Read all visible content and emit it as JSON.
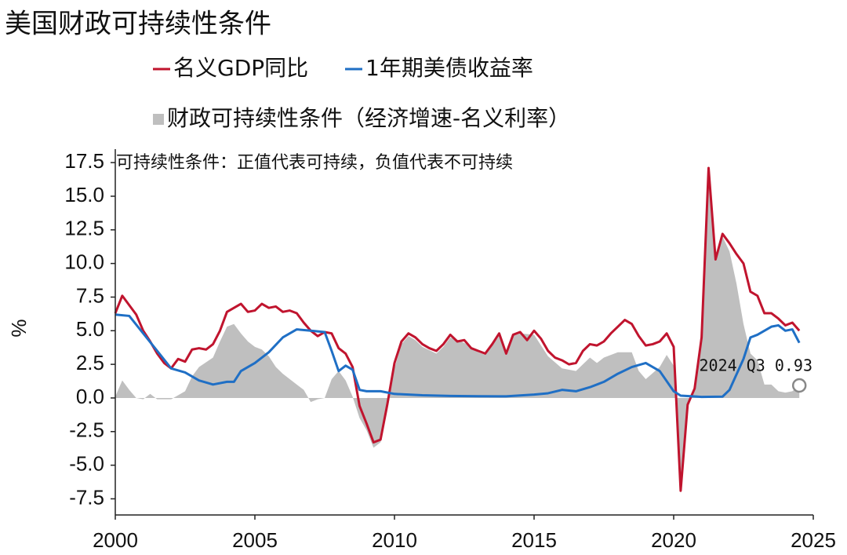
{
  "chart_data": {
    "type": "line",
    "title": "美国财政可持续性条件",
    "y_label": "%",
    "note": "可持续性条件：正值代表可持续，负值代表不可持续",
    "annotation": "2024 Q3 0.93",
    "xlim": [
      2000,
      2025
    ],
    "xticks": [
      2000,
      2005,
      2010,
      2015,
      2020,
      2025
    ],
    "ylim": [
      -8.7,
      18.5
    ],
    "yticks": [
      17.5,
      {
        "value": 15,
        "label": "15.0"
      },
      {
        "value": 12.5,
        "label": "12.5"
      },
      {
        "value": 10,
        "label": "10.0"
      },
      7.5,
      {
        "value": 5,
        "label": "5.0"
      },
      2.5,
      {
        "value": 0,
        "label": "0.0"
      },
      -2.5,
      {
        "value": -5,
        "label": "-5.0"
      },
      -7.5
    ],
    "grid": false,
    "series": [
      {
        "name": "财政可持续性条件（经济增速-名义利率）",
        "kind": "area",
        "color": "#bfbfbf",
        "x": [
          2000.0,
          2000.25,
          2000.5,
          2000.75,
          2001.0,
          2001.25,
          2001.5,
          2002.0,
          2002.5,
          2002.75,
          2003.0,
          2003.5,
          2003.75,
          2004.0,
          2004.25,
          2004.5,
          2004.75,
          2005.0,
          2005.25,
          2005.5,
          2005.75,
          2006.0,
          2006.5,
          2006.75,
          2007.0,
          2007.25,
          2007.5,
          2007.75,
          2008.0,
          2008.25,
          2008.5,
          2008.75,
          2009.0,
          2009.25,
          2009.5,
          2009.75,
          2010.0,
          2010.25,
          2010.5,
          2010.75,
          2011.0,
          2011.5,
          2011.75,
          2012.0,
          2012.5,
          2013.0,
          2013.25,
          2013.75,
          2014.0,
          2014.25,
          2014.5,
          2015.0,
          2015.5,
          2016.0,
          2016.5,
          2017.0,
          2017.25,
          2017.5,
          2018.0,
          2018.5,
          2018.75,
          2019.0,
          2019.5,
          2019.75,
          2020.0,
          2020.25,
          2020.5,
          2020.75,
          2021.0,
          2021.25,
          2021.5,
          2021.75,
          2022.0,
          2022.25,
          2022.5,
          2022.75,
          2023.0,
          2023.25,
          2023.5,
          2023.75,
          2024.0,
          2024.25,
          2024.5
        ],
        "values": [
          0.1,
          1.3,
          0.6,
          0.0,
          -0.1,
          0.3,
          -0.1,
          -0.1,
          0.5,
          1.6,
          2.3,
          3.0,
          4.2,
          5.3,
          5.5,
          4.8,
          4.2,
          3.8,
          3.6,
          3.1,
          2.3,
          1.8,
          1.0,
          0.6,
          -0.3,
          -0.1,
          0.0,
          1.4,
          2.0,
          1.3,
          0.1,
          -1.5,
          -2.4,
          -3.7,
          -3.3,
          -0.9,
          2.2,
          4.0,
          4.6,
          4.3,
          3.8,
          3.3,
          3.8,
          4.5,
          4.1,
          3.4,
          3.2,
          4.6,
          3.2,
          4.6,
          4.8,
          4.7,
          3.1,
          2.2,
          2.0,
          3.0,
          2.6,
          3.0,
          3.4,
          3.4,
          2.0,
          1.4,
          2.3,
          3.2,
          2.4,
          -7.0,
          -0.7,
          0.6,
          4.4,
          16.9,
          10.2,
          12.0,
          10.9,
          8.5,
          5.5,
          3.3,
          2.8,
          1.0,
          1.0,
          0.5,
          0.4,
          0.5,
          0.93
        ]
      },
      {
        "name": "名义GDP同比",
        "kind": "line",
        "color": "#c0142e",
        "x": [
          2000.0,
          2000.25,
          2000.5,
          2000.75,
          2001.0,
          2001.25,
          2001.5,
          2001.75,
          2002.0,
          2002.25,
          2002.5,
          2002.75,
          2003.0,
          2003.25,
          2003.5,
          2003.75,
          2004.0,
          2004.25,
          2004.5,
          2004.75,
          2005.0,
          2005.25,
          2005.5,
          2005.75,
          2006.0,
          2006.25,
          2006.5,
          2006.75,
          2007.0,
          2007.25,
          2007.5,
          2007.75,
          2008.0,
          2008.25,
          2008.5,
          2008.75,
          2009.0,
          2009.25,
          2009.5,
          2009.75,
          2010.0,
          2010.25,
          2010.5,
          2010.75,
          2011.0,
          2011.25,
          2011.5,
          2011.75,
          2012.0,
          2012.25,
          2012.5,
          2012.75,
          2013.0,
          2013.25,
          2013.5,
          2013.75,
          2014.0,
          2014.25,
          2014.5,
          2014.75,
          2015.0,
          2015.25,
          2015.5,
          2015.75,
          2016.0,
          2016.25,
          2016.5,
          2016.75,
          2017.0,
          2017.25,
          2017.5,
          2017.75,
          2018.0,
          2018.25,
          2018.5,
          2018.75,
          2019.0,
          2019.25,
          2019.5,
          2019.75,
          2020.0,
          2020.25,
          2020.5,
          2020.75,
          2021.0,
          2021.25,
          2021.5,
          2021.75,
          2022.0,
          2022.25,
          2022.5,
          2022.75,
          2023.0,
          2023.25,
          2023.5,
          2023.75,
          2024.0,
          2024.25,
          2024.5
        ],
        "values": [
          6.3,
          7.6,
          6.9,
          6.2,
          5.0,
          4.2,
          3.3,
          2.6,
          2.2,
          2.9,
          2.7,
          3.6,
          3.7,
          3.6,
          4.0,
          5.0,
          6.4,
          6.7,
          7.0,
          6.4,
          6.5,
          7.0,
          6.7,
          6.8,
          6.4,
          6.5,
          6.3,
          5.6,
          5.0,
          4.6,
          4.9,
          4.8,
          3.7,
          3.3,
          2.3,
          -0.6,
          -1.9,
          -3.3,
          -3.1,
          -0.4,
          2.6,
          4.2,
          4.8,
          4.5,
          4.0,
          3.7,
          3.5,
          4.0,
          4.7,
          4.2,
          4.3,
          3.7,
          3.5,
          3.3,
          4.0,
          4.8,
          3.3,
          4.7,
          4.9,
          4.3,
          5.0,
          4.4,
          3.5,
          3.0,
          2.8,
          2.5,
          2.6,
          3.5,
          4.0,
          3.9,
          4.2,
          4.8,
          5.3,
          5.8,
          5.5,
          4.6,
          3.9,
          4.0,
          4.2,
          4.8,
          3.8,
          -6.9,
          -0.5,
          0.7,
          4.5,
          17.1,
          10.3,
          12.2,
          11.5,
          10.7,
          10.0,
          7.9,
          7.6,
          6.3,
          6.3,
          5.9,
          5.4,
          5.6,
          5.0
        ]
      },
      {
        "name": "1年期美债收益率",
        "kind": "line",
        "color": "#1f6fc5",
        "x": [
          2000.0,
          2000.5,
          2001.0,
          2001.5,
          2002.0,
          2002.5,
          2003.0,
          2003.5,
          2004.0,
          2004.25,
          2004.5,
          2005.0,
          2005.5,
          2006.0,
          2006.5,
          2007.0,
          2007.5,
          2007.75,
          2008.0,
          2008.25,
          2008.5,
          2008.75,
          2009.0,
          2009.5,
          2010.0,
          2011.0,
          2012.0,
          2013.0,
          2014.0,
          2015.0,
          2015.5,
          2016.0,
          2016.5,
          2017.0,
          2017.5,
          2018.0,
          2018.5,
          2019.0,
          2019.5,
          2020.0,
          2020.25,
          2021.0,
          2021.75,
          2022.0,
          2022.5,
          2022.75,
          2023.0,
          2023.5,
          2023.75,
          2024.0,
          2024.25,
          2024.5
        ],
        "values": [
          6.2,
          6.1,
          4.8,
          3.5,
          2.2,
          1.9,
          1.3,
          1.0,
          1.2,
          1.2,
          2.0,
          2.6,
          3.4,
          4.5,
          5.1,
          5.0,
          4.9,
          3.5,
          2.0,
          2.4,
          2.1,
          0.6,
          0.5,
          0.5,
          0.3,
          0.2,
          0.15,
          0.13,
          0.12,
          0.25,
          0.35,
          0.6,
          0.5,
          0.8,
          1.2,
          1.8,
          2.3,
          2.6,
          2.0,
          0.5,
          0.17,
          0.08,
          0.1,
          0.6,
          2.9,
          4.5,
          4.7,
          5.3,
          5.4,
          5.0,
          5.1,
          4.1
        ]
      }
    ]
  }
}
